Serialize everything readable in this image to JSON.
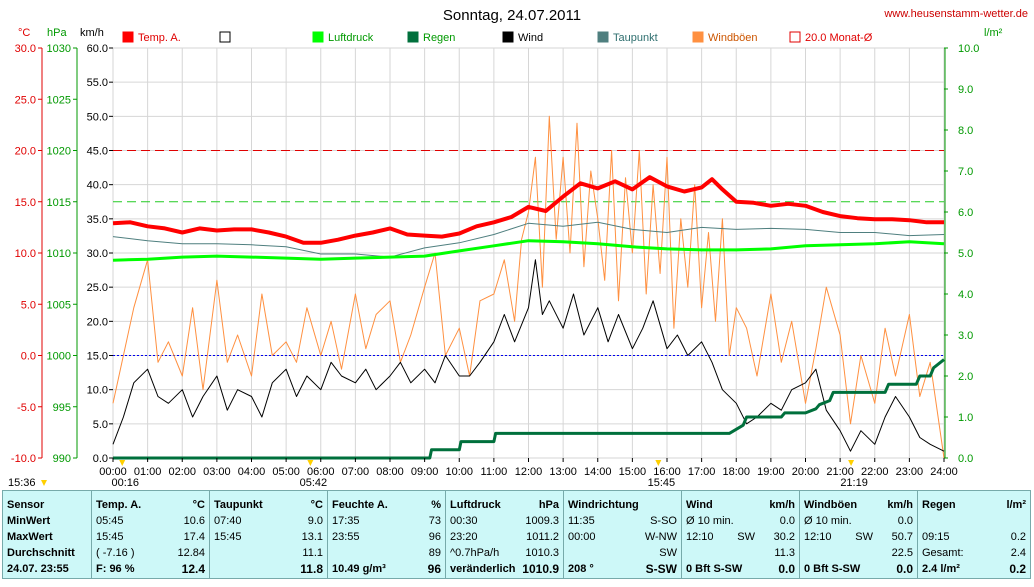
{
  "chart_data": {
    "type": "line",
    "title": "Sonntag, 24.07.2011",
    "site": "www.heusenstamm-wetter.de",
    "grid": true,
    "legend_position": "top",
    "legend": [
      {
        "name": "Temp. A.",
        "color": "#ff0000"
      },
      {
        "name": "",
        "color": "#ffffff"
      },
      {
        "name": "Luftdruck",
        "color": "#00ff00"
      },
      {
        "name": "Regen",
        "color": "#00703c"
      },
      {
        "name": "Wind",
        "color": "#000000"
      },
      {
        "name": "Taupunkt",
        "color": "#4f7f7f"
      },
      {
        "name": "Windböen",
        "color": "#ff9040"
      },
      {
        "name": "20.0 Monat-Ø",
        "color": "#ff2020"
      }
    ],
    "axes": {
      "temp": {
        "unit": "°C",
        "min": -10,
        "max": 30,
        "ticks": [
          "30.0",
          "25.0",
          "20.0",
          "15.0",
          "10.0",
          "5.0",
          "0.0",
          "-5.0",
          "-10.0"
        ]
      },
      "pressure": {
        "unit": "hPa",
        "min": 990,
        "max": 1030,
        "ticks": [
          "1030",
          "1025",
          "1020",
          "1015",
          "1010",
          "1005",
          "1000",
          "995",
          "990"
        ]
      },
      "wind": {
        "unit": "km/h",
        "min": 0,
        "max": 60,
        "ticks": [
          "60.0",
          "55.0",
          "50.0",
          "45.0",
          "40.0",
          "35.0",
          "30.0",
          "25.0",
          "20.0",
          "15.0",
          "10.0",
          "5.0",
          "0.0"
        ]
      },
      "rain": {
        "unit": "l/m²",
        "min": 0,
        "max": 10,
        "ticks": [
          "10.0",
          "9.0",
          "8.0",
          "7.0",
          "6.0",
          "5.0",
          "4.0",
          "3.0",
          "2.0",
          "1.0",
          "0.0"
        ]
      },
      "x": {
        "ticks": [
          "00:00",
          "01:00",
          "02:00",
          "03:00",
          "04:00",
          "05:00",
          "06:00",
          "07:00",
          "08:00",
          "09:00",
          "10:00",
          "11:00",
          "12:00",
          "13:00",
          "14:00",
          "15:00",
          "16:00",
          "17:00",
          "18:00",
          "19:00",
          "20:00",
          "21:00",
          "22:00",
          "23:00",
          "24:00"
        ]
      }
    },
    "reference_lines": {
      "monthly_avg_temp": 20.0,
      "pressure_line": 1015,
      "zero_temp": 0.0
    },
    "markers": [
      {
        "time": "00:16",
        "label": "00:16"
      },
      {
        "time": "05:42",
        "label": "05:42"
      },
      {
        "time": "15:45",
        "label": "15:45"
      },
      {
        "time": "21:19",
        "label": "21:19"
      }
    ],
    "left_time_label": "15:36",
    "series": [
      {
        "name": "Temp. A.",
        "axis": "temp",
        "color": "#ff0000",
        "width": 4,
        "x": [
          0,
          0.5,
          1,
          1.5,
          2,
          2.5,
          3,
          3.5,
          4,
          4.5,
          5,
          5.5,
          6,
          6.5,
          7,
          7.5,
          8,
          8.5,
          9,
          9.5,
          10,
          10.5,
          11,
          11.5,
          12,
          12.5,
          13,
          13.5,
          14,
          14.5,
          15,
          15.25,
          15.5,
          16,
          16.5,
          17,
          17.3,
          17.6,
          18,
          18.5,
          19,
          19.5,
          20,
          20.5,
          21,
          21.5,
          22,
          22.5,
          23,
          23.5,
          24
        ],
        "y": [
          12.9,
          13.0,
          12.6,
          12.4,
          12.0,
          12.4,
          12.2,
          12.3,
          12.3,
          12.0,
          11.6,
          11.0,
          11.0,
          11.3,
          11.7,
          12.0,
          12.4,
          11.8,
          11.7,
          11.6,
          11.9,
          12.6,
          13.0,
          13.5,
          14.5,
          14.1,
          15.5,
          16.8,
          16.3,
          17.0,
          16.2,
          16.8,
          17.4,
          16.5,
          16.0,
          16.4,
          17.2,
          16.2,
          15.0,
          14.9,
          14.6,
          14.8,
          14.6,
          14.0,
          13.6,
          13.4,
          13.3,
          13.3,
          13.2,
          13.0,
          13.0
        ]
      },
      {
        "name": "Taupunkt",
        "axis": "temp",
        "color": "#4f7f7f",
        "width": 1,
        "x": [
          0,
          1,
          2,
          3,
          4,
          5,
          6,
          7,
          8,
          9,
          10,
          11,
          12,
          13,
          14,
          15,
          16,
          17,
          18,
          19,
          20,
          21,
          22,
          23,
          24
        ],
        "y": [
          11.6,
          11.2,
          10.9,
          10.9,
          10.8,
          10.6,
          9.9,
          9.9,
          9.6,
          10.5,
          11.0,
          11.8,
          12.9,
          12.6,
          13.0,
          12.3,
          12.0,
          12.5,
          12.3,
          12.4,
          12.3,
          12.0,
          12.0,
          11.7,
          11.8
        ]
      },
      {
        "name": "Luftdruck",
        "axis": "pressure",
        "color": "#00ff00",
        "width": 3,
        "x": [
          0,
          1,
          2,
          3,
          4,
          5,
          6,
          7,
          8,
          9,
          10,
          11,
          12,
          13,
          14,
          15,
          16,
          17,
          18,
          19,
          20,
          21,
          22,
          23,
          24
        ],
        "y": [
          1009.3,
          1009.4,
          1009.6,
          1009.7,
          1009.6,
          1009.5,
          1009.4,
          1009.5,
          1009.6,
          1009.7,
          1010.2,
          1010.7,
          1011.2,
          1011.1,
          1010.9,
          1010.6,
          1010.4,
          1010.3,
          1010.3,
          1010.4,
          1010.7,
          1010.8,
          1010.9,
          1011.1,
          1010.9
        ]
      },
      {
        "name": "Regen",
        "axis": "rain",
        "color": "#00703c",
        "width": 3,
        "x": [
          0,
          9.15,
          9.2,
          10.0,
          10.05,
          11.0,
          11.05,
          17.8,
          18.2,
          18.3,
          19.3,
          19.4,
          20.0,
          20.3,
          20.4,
          20.7,
          20.8,
          21.3,
          22.0,
          22.3,
          22.4,
          23.2,
          23.3,
          23.6,
          23.7,
          24
        ],
        "y": [
          0,
          0,
          0.2,
          0.2,
          0.4,
          0.4,
          0.6,
          0.6,
          0.8,
          1.0,
          1.0,
          1.1,
          1.1,
          1.2,
          1.3,
          1.4,
          1.6,
          1.6,
          1.6,
          1.6,
          1.8,
          1.8,
          2.0,
          2.0,
          2.2,
          2.4
        ]
      },
      {
        "name": "Wind",
        "axis": "wind",
        "color": "#000000",
        "width": 1,
        "x": [
          0,
          0.3,
          0.6,
          1.0,
          1.3,
          1.6,
          2.0,
          2.3,
          2.6,
          3.0,
          3.3,
          3.6,
          4.0,
          4.3,
          4.6,
          5.0,
          5.3,
          5.6,
          6.0,
          6.3,
          6.6,
          7.0,
          7.3,
          7.6,
          8.0,
          8.3,
          8.6,
          9.0,
          9.3,
          9.6,
          10.0,
          10.3,
          10.6,
          11.0,
          11.3,
          11.6,
          12.0,
          12.2,
          12.4,
          12.6,
          13.0,
          13.3,
          13.6,
          14.0,
          14.3,
          14.6,
          15.0,
          15.3,
          15.6,
          16.0,
          16.3,
          16.6,
          17.0,
          17.3,
          17.6,
          18.0,
          18.3,
          18.6,
          19.0,
          19.3,
          19.6,
          20.0,
          20.3,
          20.6,
          21.0,
          21.3,
          21.6,
          22.0,
          22.3,
          22.6,
          23.0,
          23.3,
          23.6,
          24.0
        ],
        "y": [
          2,
          6,
          11,
          13,
          9,
          8,
          10,
          6,
          9,
          12,
          7,
          10,
          9,
          6,
          11,
          13,
          9,
          12,
          10,
          14,
          12,
          11,
          13,
          10,
          12,
          14,
          11,
          13,
          11,
          15,
          12,
          12,
          14,
          17,
          21,
          17,
          22,
          29,
          21,
          23,
          19,
          24,
          18,
          22,
          17,
          21,
          16,
          19,
          23,
          16,
          18,
          15,
          17,
          14,
          10,
          8,
          5,
          6,
          8,
          7,
          10,
          11,
          13,
          7,
          4,
          1,
          4,
          2,
          6,
          9,
          6,
          3,
          2,
          1
        ]
      },
      {
        "name": "Windböen",
        "axis": "wind",
        "color": "#ff9040",
        "width": 1,
        "x": [
          0,
          0.3,
          0.6,
          1.0,
          1.3,
          1.6,
          2.0,
          2.3,
          2.6,
          3.0,
          3.3,
          3.6,
          4.0,
          4.3,
          4.6,
          5.0,
          5.3,
          5.6,
          6.0,
          6.3,
          6.6,
          7.0,
          7.3,
          7.6,
          8.0,
          8.3,
          8.6,
          9.0,
          9.3,
          9.6,
          10.0,
          10.3,
          10.6,
          11.0,
          11.3,
          11.6,
          11.8,
          12.0,
          12.2,
          12.4,
          12.6,
          12.8,
          13.0,
          13.2,
          13.4,
          13.6,
          13.8,
          14.0,
          14.2,
          14.4,
          14.6,
          14.8,
          15.0,
          15.2,
          15.4,
          15.6,
          15.8,
          16.0,
          16.2,
          16.4,
          16.6,
          16.8,
          17.0,
          17.2,
          17.4,
          17.6,
          17.8,
          18.0,
          18.3,
          18.6,
          19.0,
          19.3,
          19.6,
          20.0,
          20.3,
          20.6,
          21.0,
          21.3,
          21.6,
          22.0,
          22.3,
          22.6,
          23.0,
          23.3,
          23.6,
          24.0
        ],
        "y": [
          8,
          15,
          22,
          29,
          14,
          17,
          12,
          22,
          10,
          26,
          14,
          18,
          12,
          24,
          15,
          17,
          14,
          22,
          15,
          20,
          13,
          24,
          16,
          21,
          23,
          14,
          18,
          25,
          30,
          15,
          19,
          12,
          23,
          24,
          29,
          20,
          32,
          36,
          44,
          25,
          50,
          32,
          44,
          30,
          49,
          28,
          42,
          35,
          26,
          45,
          23,
          41,
          30,
          45,
          24,
          40,
          27,
          44,
          19,
          35,
          25,
          40,
          22,
          33,
          20,
          35,
          15,
          22,
          19,
          12,
          24,
          14,
          20,
          8,
          16,
          25,
          18,
          5,
          15,
          8,
          19,
          12,
          21,
          9,
          14,
          0
        ]
      }
    ]
  },
  "stats": {
    "sensor": {
      "header": "Sensor",
      "rows": [
        "MinWert",
        "MaxWert",
        "Durchschnitt",
        "24.07. 23:55"
      ]
    },
    "temp": {
      "header": "Temp. A.",
      "unit": "°C",
      "rows": [
        {
          "l": "05:45",
          "r": "10.6"
        },
        {
          "l": "15:45",
          "r": "17.4"
        },
        {
          "l": "( -7.16 )",
          "r": "12.84"
        },
        {
          "l": "F: 96 %",
          "r": "12.4"
        }
      ]
    },
    "taupunkt": {
      "header": "Taupunkt",
      "unit": "°C",
      "rows": [
        {
          "l": "07:40",
          "r": "9.0"
        },
        {
          "l": "15:45",
          "r": "13.1"
        },
        {
          "l": "",
          "r": "11.1"
        },
        {
          "l": "",
          "r": "11.8"
        }
      ]
    },
    "feuchte": {
      "header": "Feuchte A.",
      "unit": "%",
      "rows": [
        {
          "l": "17:35",
          "r": "73"
        },
        {
          "l": "23:55",
          "r": "96"
        },
        {
          "l": "",
          "r": "89"
        },
        {
          "l": "10.49 g/m³",
          "r": "96"
        }
      ]
    },
    "luftdruck": {
      "header": "Luftdruck",
      "unit": "hPa",
      "rows": [
        {
          "l": "00:30",
          "r": "1009.3"
        },
        {
          "l": "23:20",
          "r": "1011.2"
        },
        {
          "l": "^0.7hPa/h",
          "r": "1010.3"
        },
        {
          "l": "veränderlich",
          "r": "1010.9"
        }
      ]
    },
    "windrichtung": {
      "header": "Windrichtung",
      "unit": "",
      "rows": [
        {
          "l": "11:35",
          "r": "S-SO"
        },
        {
          "l": "00:00",
          "r": "W-NW"
        },
        {
          "l": "",
          "r": "SW"
        },
        {
          "l": "208 °",
          "r": "S-SW"
        }
      ]
    },
    "wind": {
      "header": "Wind",
      "unit": "km/h",
      "rows": [
        {
          "l": "Ø 10 min.",
          "m": "",
          "r": "0.0"
        },
        {
          "l": "12:10",
          "m": "SW",
          "r": "30.2"
        },
        {
          "l": "",
          "m": "",
          "r": "11.3"
        },
        {
          "l": "0 Bft S-SW",
          "m": "",
          "r": "0.0"
        }
      ]
    },
    "windboeen": {
      "header": "Windböen",
      "unit": "km/h",
      "rows": [
        {
          "l": "Ø 10 min.",
          "m": "",
          "r": "0.0"
        },
        {
          "l": "12:10",
          "m": "SW",
          "r": "50.7"
        },
        {
          "l": "",
          "m": "",
          "r": "22.5"
        },
        {
          "l": "0 Bft S-SW",
          "m": "",
          "r": "0.0"
        }
      ]
    },
    "regen": {
      "header": "Regen",
      "unit": "l/m²",
      "rows": [
        {
          "l": "",
          "r": ""
        },
        {
          "l": "09:15",
          "r": "0.2"
        },
        {
          "l": "Gesamt:",
          "r": "2.4"
        },
        {
          "l": "2.4 l/m²",
          "r": "0.2"
        }
      ]
    }
  }
}
